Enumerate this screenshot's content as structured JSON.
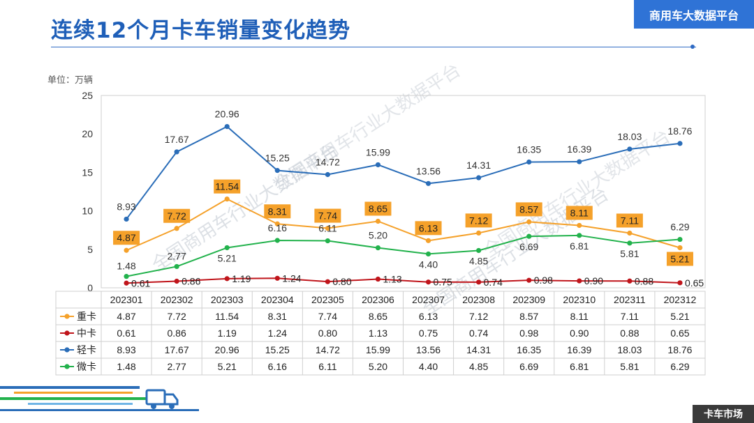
{
  "header": {
    "title": "连续12个月卡车销量变化趋势",
    "brand": "商用车大数据平台"
  },
  "unit_label": "单位：万辆",
  "watermark": "全国商用车行业大数据平台",
  "footer": {
    "tag": "卡车市场"
  },
  "colors": {
    "heavy": "#f5a12a",
    "medium": "#c0151b",
    "light": "#2a6db8",
    "micro": "#22b24c",
    "label_box": "#f5a12a"
  },
  "chart_data": {
    "type": "line",
    "title": "连续12个月卡车销量变化趋势",
    "ylabel": "单位：万辆",
    "ylim": [
      0,
      25
    ],
    "yticks": [
      0,
      5,
      10,
      15,
      20,
      25
    ],
    "categories": [
      "202301",
      "202302",
      "202303",
      "202304",
      "202305",
      "202306",
      "202307",
      "202308",
      "202309",
      "202310",
      "202311",
      "202312"
    ],
    "series": [
      {
        "key": "heavy",
        "name": "重卡",
        "values": [
          4.87,
          7.72,
          11.54,
          8.31,
          7.74,
          8.65,
          6.13,
          7.12,
          8.57,
          8.11,
          7.11,
          5.21
        ]
      },
      {
        "key": "medium",
        "name": "中卡",
        "values": [
          0.61,
          0.86,
          1.19,
          1.24,
          0.8,
          1.13,
          0.75,
          0.74,
          0.98,
          0.9,
          0.88,
          0.65
        ]
      },
      {
        "key": "light",
        "name": "轻卡",
        "values": [
          8.93,
          17.67,
          20.96,
          15.25,
          14.72,
          15.99,
          13.56,
          14.31,
          16.35,
          16.39,
          18.03,
          18.76
        ]
      },
      {
        "key": "micro",
        "name": "微卡",
        "values": [
          1.48,
          2.77,
          5.21,
          6.16,
          6.11,
          5.2,
          4.4,
          4.85,
          6.69,
          6.81,
          5.81,
          6.29
        ]
      }
    ]
  }
}
